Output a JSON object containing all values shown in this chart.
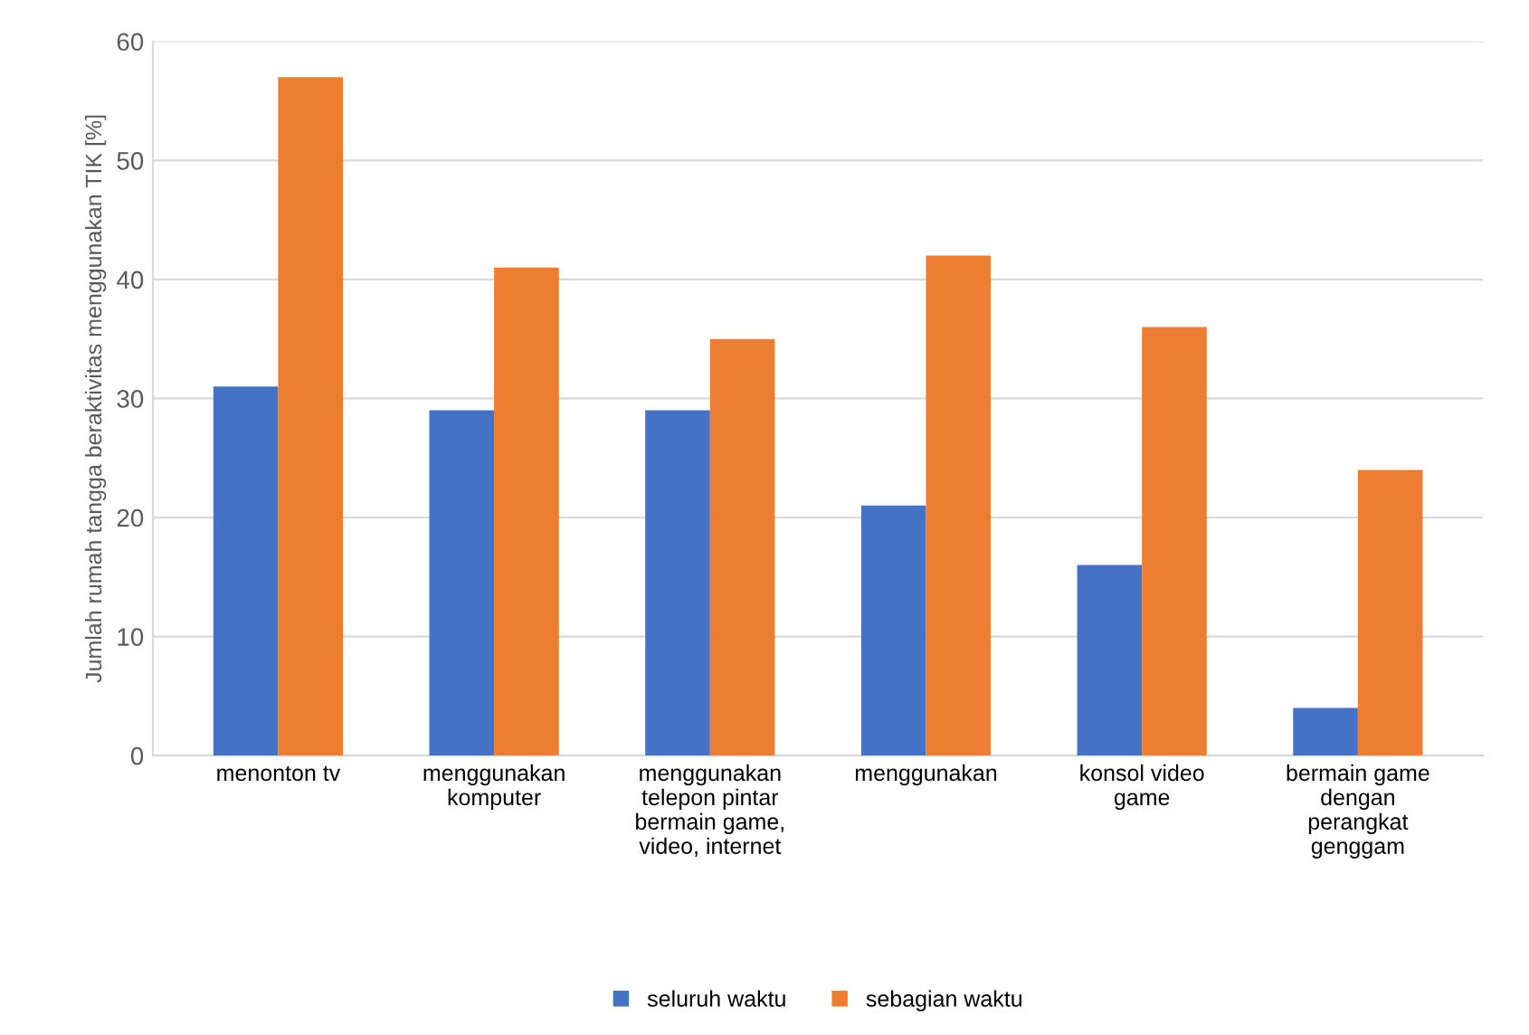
{
  "chart_data": {
    "type": "bar",
    "ylabel": "Jumlah rumah tangga beraktivitas menggunakan TIK [%]",
    "categories": [
      "menonton tv",
      "menggunakan\nkomputer",
      "menggunakan\ntelepon pintar\nbermain game,\nvideo, internet",
      "menggunakan",
      "konsol video\ngame",
      "bermain game\ndengan\nperangkat\ngenggam"
    ],
    "series": [
      {
        "name": "seluruh waktu",
        "color": "#4472c4",
        "values": [
          31,
          29,
          29,
          21,
          16,
          4
        ]
      },
      {
        "name": "sebagian waktu",
        "color": "#ed7d31",
        "values": [
          57,
          41,
          35,
          42,
          36,
          24
        ]
      }
    ],
    "ylim": [
      0,
      60
    ],
    "yticks": [
      0,
      10,
      20,
      30,
      40,
      50,
      60
    ],
    "grid": "y",
    "legend": "bottom"
  }
}
